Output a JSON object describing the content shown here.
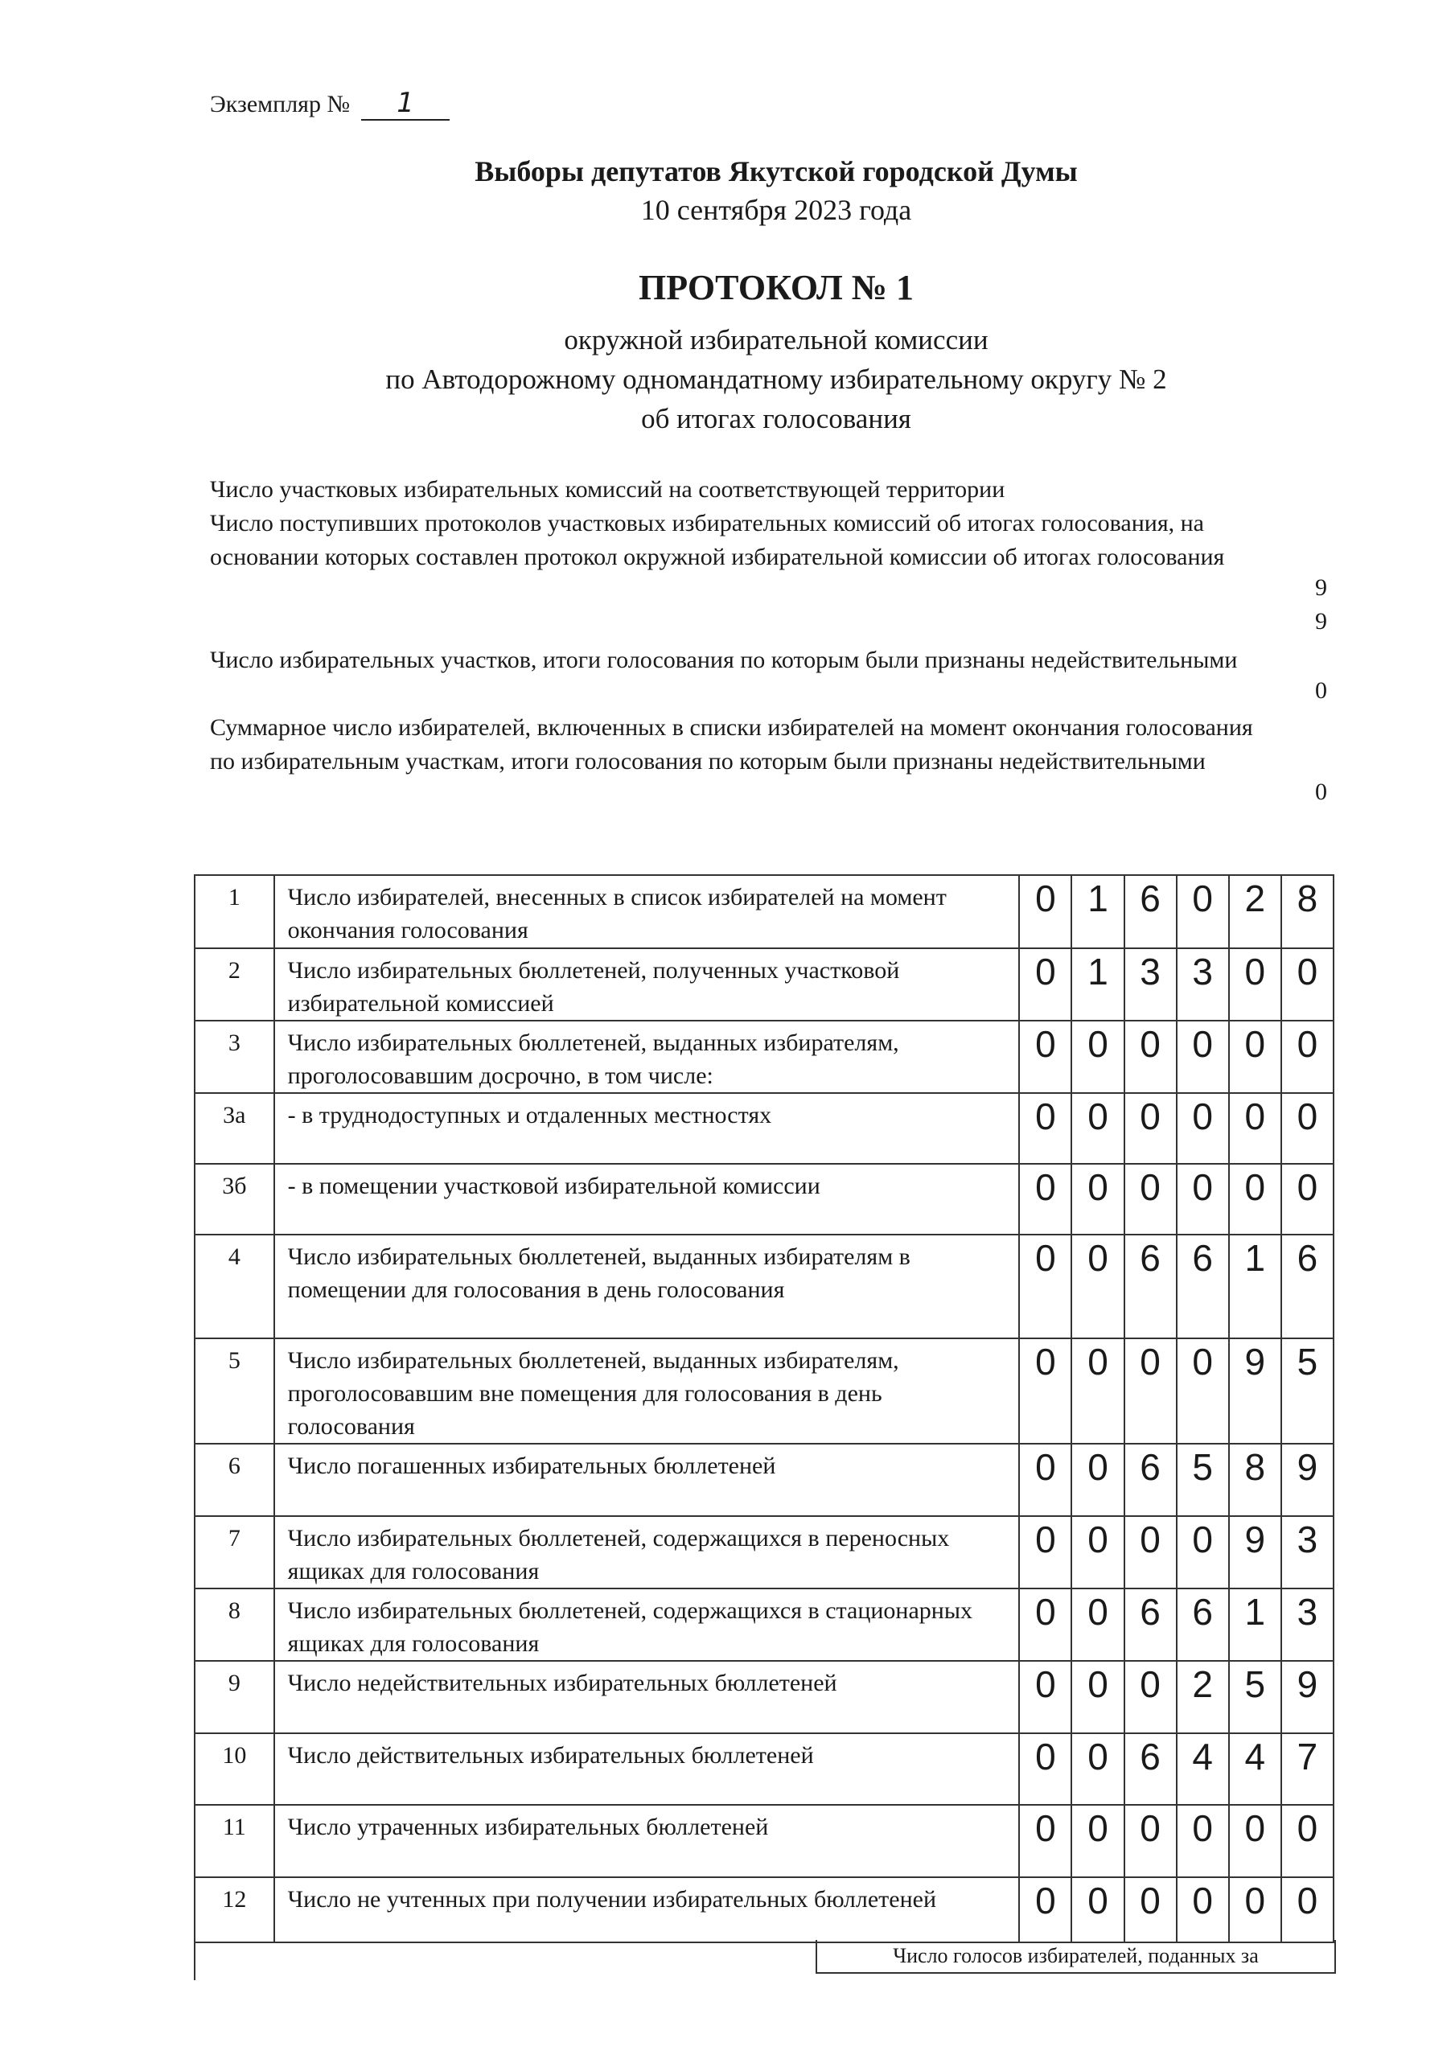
{
  "header": {
    "copy_label": "Экземпляр №",
    "copy_number": "1"
  },
  "title": {
    "election": "Выборы депутатов Якутской городской Думы",
    "date": "10 сентября 2023 года",
    "protocol": "ПРОТОКОЛ № 1",
    "line1": "окружной избирательной комиссии",
    "line2": "по Автодорожному одномандатному избирательному округу № 2",
    "line3": "об итогах голосования"
  },
  "summary": [
    {
      "text": "Число участковых избирательных комиссий на соответствующей территории",
      "value": "9"
    },
    {
      "text": "Число поступивших протоколов участковых избирательных комиссий об итогах голосования, на основании которых составлен протокол окружной избирательной комиссии об итогах голосования",
      "value": "9"
    },
    {
      "text": "Число избирательных участков, итоги голосования по которым были признаны недействительными",
      "value": "0"
    },
    {
      "text": "Суммарное число избирателей, включенных в списки избирателей на момент окончания голосования по избирательным участкам, итоги голосования по которым были признаны недействительными",
      "value": "0"
    }
  ],
  "rows": [
    {
      "n": "1",
      "text": "Число избирателей, внесенных в список избирателей на момент окончания голосования",
      "d": [
        "0",
        "1",
        "6",
        "0",
        "2",
        "8"
      ]
    },
    {
      "n": "2",
      "text": "Число избирательных бюллетеней, полученных участковой избирательной комиссией",
      "d": [
        "0",
        "1",
        "3",
        "3",
        "0",
        "0"
      ]
    },
    {
      "n": "3",
      "text": "Число избирательных бюллетеней, выданных избирателям, проголосовавшим досрочно, в том числе:",
      "d": [
        "0",
        "0",
        "0",
        "0",
        "0",
        "0"
      ]
    },
    {
      "n": "3а",
      "text": "- в труднодоступных и отдаленных местностях",
      "d": [
        "0",
        "0",
        "0",
        "0",
        "0",
        "0"
      ]
    },
    {
      "n": "3б",
      "text": "- в помещении участковой избирательной комиссии",
      "d": [
        "0",
        "0",
        "0",
        "0",
        "0",
        "0"
      ]
    },
    {
      "n": "4",
      "text": "Число избирательных бюллетеней, выданных избирателям в помещении для голосования в день голосования",
      "d": [
        "0",
        "0",
        "6",
        "6",
        "1",
        "6"
      ]
    },
    {
      "n": "5",
      "text": "Число избирательных бюллетеней, выданных избирателям, проголосовавшим вне помещения для голосования в день голосования",
      "d": [
        "0",
        "0",
        "0",
        "0",
        "9",
        "5"
      ]
    },
    {
      "n": "6",
      "text": "Число погашенных избирательных бюллетеней",
      "d": [
        "0",
        "0",
        "6",
        "5",
        "8",
        "9"
      ]
    },
    {
      "n": "7",
      "text": "Число избирательных бюллетеней, содержащихся в переносных ящиках для голосования",
      "d": [
        "0",
        "0",
        "0",
        "0",
        "9",
        "3"
      ]
    },
    {
      "n": "8",
      "text": "Число избирательных бюллетеней, содержащихся в стационарных ящиках для голосования",
      "d": [
        "0",
        "0",
        "6",
        "6",
        "1",
        "3"
      ]
    },
    {
      "n": "9",
      "text": "Число недействительных избирательных бюллетеней",
      "d": [
        "0",
        "0",
        "0",
        "2",
        "5",
        "9"
      ]
    },
    {
      "n": "10",
      "text": "Число действительных избирательных бюллетеней",
      "d": [
        "0",
        "0",
        "6",
        "4",
        "4",
        "7"
      ]
    },
    {
      "n": "11",
      "text": "Число утраченных избирательных  бюллетеней",
      "d": [
        "0",
        "0",
        "0",
        "0",
        "0",
        "0"
      ]
    },
    {
      "n": "12",
      "text": "Число не учтенных при получении избирательных бюллетеней",
      "d": [
        "0",
        "0",
        "0",
        "0",
        "0",
        "0"
      ]
    }
  ],
  "footer": {
    "votes_header": "Число голосов избирателей, поданных за"
  }
}
